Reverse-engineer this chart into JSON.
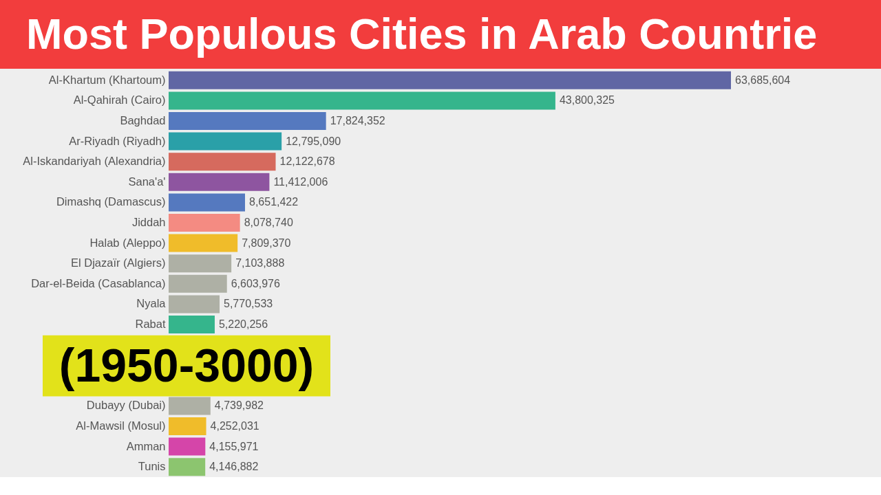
{
  "chart_data": {
    "type": "bar",
    "orientation": "horizontal",
    "title": "Most Populous Cities in Arab Countrie",
    "annotations": [
      "(1950-3000)"
    ],
    "categories": [
      "Al-Khartum (Khartoum)",
      "Al-Qahirah (Cairo)",
      "Baghdad",
      "Ar-Riyadh (Riyadh)",
      "Al-Iskandariyah (Alexandria)",
      "Sana'a'",
      "Dimashq (Damascus)",
      "Jiddah",
      "Halab (Aleppo)",
      "El Djazaïr (Algiers)",
      "Dar-el-Beida (Casablanca)",
      "Nyala",
      "Rabat",
      null,
      null,
      null,
      "Dubayy (Dubai)",
      "Al-Mawsil (Mosul)",
      "Amman",
      "Tunis"
    ],
    "values": [
      63685604,
      43800325,
      17824352,
      12795090,
      12122678,
      11412006,
      8651422,
      8078740,
      7809370,
      7103888,
      6603976,
      5770533,
      5220256,
      null,
      null,
      null,
      4739982,
      4252031,
      4155971,
      4146882
    ],
    "value_labels": [
      "63,685,604",
      "43,800,325",
      "17,824,352",
      "12,795,090",
      "12,122,678",
      "11,412,006",
      "8,651,422",
      "8,078,740",
      "7,809,370",
      "7,103,888",
      "6,603,976",
      "5,770,533",
      "5,220,256",
      null,
      null,
      null,
      "4,739,982",
      "4,252,031",
      "4,155,971",
      "4,146,882"
    ],
    "colors": [
      "#6066a4",
      "#35b58c",
      "#5579bf",
      "#2aa0a8",
      "#d66a5e",
      "#8e55a0",
      "#5579bf",
      "#f48b82",
      "#f0bc2a",
      "#aeb0a5",
      "#aeb0a5",
      "#aeb0a5",
      "#35b58c",
      null,
      null,
      null,
      "#aeb0a5",
      "#f0bc2a",
      "#d545a9",
      "#8cc56f"
    ],
    "tick_labels": "y"
  }
}
